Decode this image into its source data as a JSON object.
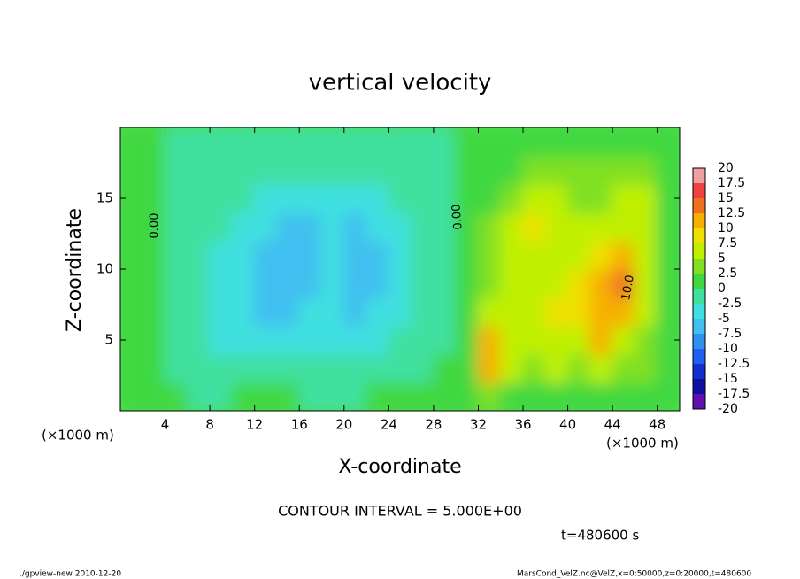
{
  "chart_data": {
    "type": "contour",
    "title": "vertical velocity",
    "xlabel": "X-coordinate",
    "ylabel": "Z-coordinate",
    "x_unit_labels": [
      "(×1000 m)",
      "(×1000 m)"
    ],
    "annotations": [
      "CONTOUR INTERVAL = 5.000E+00",
      "t=480600 s"
    ],
    "footer": [
      "./gpview-new  2010-12-20",
      "MarsCond_VelZ.nc@VelZ,x=0:50000,z=0:20000,t=480600"
    ],
    "contour_labels": [
      "0.00",
      "0.00",
      "10.0"
    ],
    "xlim": [
      0,
      50
    ],
    "ylim": [
      0,
      20
    ],
    "xticks": [
      4,
      8,
      12,
      16,
      20,
      24,
      28,
      32,
      36,
      40,
      44,
      48
    ],
    "yticks": [
      5,
      10,
      15
    ],
    "x": [
      1,
      3,
      5,
      7,
      9,
      11,
      13,
      15,
      17,
      19,
      21,
      23,
      25,
      27,
      29,
      31,
      33,
      35,
      37,
      39,
      41,
      43,
      45,
      47,
      49
    ],
    "z": [
      1,
      3,
      5,
      7,
      9,
      11,
      13,
      15,
      17,
      19
    ],
    "values": [
      [
        1,
        0.5,
        0,
        -0.5,
        -0.5,
        0.5,
        1,
        0,
        -0.5,
        -0.5,
        -0.5,
        0,
        0,
        0,
        0,
        1,
        3,
        2,
        2,
        2,
        2,
        2,
        2,
        2,
        1
      ],
      [
        1,
        0.5,
        -0.5,
        -1,
        -1.5,
        -2,
        -2,
        -2,
        -2,
        -2,
        -2,
        -1.5,
        -1,
        -0.5,
        0,
        1,
        12,
        6,
        4,
        5,
        4,
        5,
        4,
        3,
        1
      ],
      [
        1,
        0.5,
        -0.5,
        -1.5,
        -3,
        -4,
        -4,
        -4,
        -3.5,
        -4,
        -4.5,
        -3,
        -2.5,
        -1,
        -0.5,
        1,
        11,
        7,
        5,
        6,
        5,
        10,
        7,
        4,
        2
      ],
      [
        1,
        0.5,
        -0.5,
        -2,
        -4,
        -5,
        -6,
        -6,
        -5,
        -5,
        -6,
        -5,
        -4,
        -2,
        -0.5,
        1,
        5,
        6,
        7,
        8,
        8,
        12,
        12,
        5,
        2
      ],
      [
        1,
        0.5,
        -0.5,
        -2,
        -4,
        -5,
        -7,
        -7,
        -6,
        -5,
        -7,
        -6,
        -4,
        -2,
        -0.5,
        1,
        4,
        6,
        7,
        7,
        8,
        11,
        13,
        7,
        2
      ],
      [
        1,
        0.5,
        -0.5,
        -1.5,
        -3,
        -4,
        -6,
        -7,
        -6,
        -5,
        -7,
        -6,
        -3,
        -1.5,
        -0.5,
        1,
        3,
        5,
        7,
        6,
        6,
        9,
        11,
        6,
        2
      ],
      [
        1,
        0.5,
        -0.5,
        -1,
        -2,
        -3.5,
        -5,
        -6,
        -6,
        -5,
        -6,
        -5,
        -3,
        -1.5,
        -0.5,
        1,
        3,
        5,
        8,
        6,
        5,
        6,
        7,
        5,
        2
      ],
      [
        1,
        0.5,
        -0.5,
        -1,
        -1.5,
        -2,
        -3,
        -4,
        -4.5,
        -4,
        -4,
        -3,
        -2,
        -1,
        -0.5,
        1,
        2,
        4,
        6,
        5,
        4,
        4,
        5,
        5,
        2
      ],
      [
        1,
        0.5,
        -0.5,
        -1,
        -1,
        -1,
        -1.5,
        -2,
        -2.5,
        -2,
        -1.5,
        -1,
        -1,
        -1,
        -0.5,
        1,
        1.5,
        2,
        3,
        3,
        3,
        2.5,
        3,
        2.5,
        1.5
      ],
      [
        1,
        1,
        -0.5,
        -0.5,
        -0.5,
        -0.5,
        -0.5,
        -1,
        -1,
        -1,
        -1,
        -0.5,
        -0.5,
        -0.5,
        -0.5,
        1,
        1,
        1.5,
        1.5,
        1.5,
        1.5,
        1.5,
        1.5,
        1.5,
        1
      ]
    ],
    "levels": [
      -20,
      -17.5,
      -15,
      -12.5,
      -10,
      -7.5,
      -5,
      -2.5,
      0,
      2.5,
      5,
      7.5,
      10,
      12.5,
      15,
      17.5,
      20
    ],
    "colors": [
      "#6010b0",
      "#1010a0",
      "#1030d0",
      "#2060f0",
      "#3090f0",
      "#40c0f0",
      "#40e0e0",
      "#40e0a0",
      "#40d840",
      "#80e020",
      "#c0f000",
      "#f0e000",
      "#f8b000",
      "#f07020",
      "#f04040",
      "#f0a0a0"
    ]
  }
}
